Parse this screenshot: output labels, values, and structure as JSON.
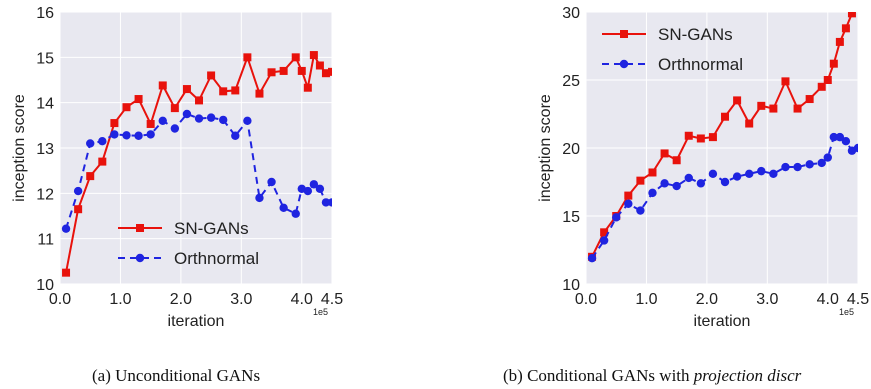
{
  "colors": {
    "sn": "#e8120c",
    "ortho": "#1f24e0",
    "plot_bg": "#e8e8f0",
    "grid": "#ffffff"
  },
  "chart_data": [
    {
      "type": "line",
      "caption": "(a)  Unconditional GANs",
      "xlabel": "iteration",
      "ylabel": "inception score",
      "x_scale_label": "1e5",
      "xlim": [
        0.0,
        4.5
      ],
      "ylim": [
        10,
        16
      ],
      "xticks": [
        "0.0",
        "1.0",
        "2.0",
        "3.0",
        "4.0",
        "4.5"
      ],
      "yticks": [
        "10",
        "11",
        "12",
        "13",
        "14",
        "15",
        "16"
      ],
      "grid": true,
      "legend_position": "lower-center",
      "series": [
        {
          "name": "SN-GANs",
          "style": "solid-square",
          "x": [
            0.1,
            0.3,
            0.5,
            0.7,
            0.9,
            1.1,
            1.3,
            1.5,
            1.7,
            1.9,
            2.1,
            2.3,
            2.5,
            2.7,
            2.9,
            3.1,
            3.3,
            3.5,
            3.7,
            3.9,
            4.0,
            4.1,
            4.2,
            4.3,
            4.4,
            4.5
          ],
          "y": [
            10.25,
            11.65,
            12.38,
            12.7,
            13.55,
            13.9,
            14.08,
            13.53,
            14.38,
            13.88,
            14.3,
            14.05,
            14.6,
            14.25,
            14.27,
            15.0,
            14.2,
            14.67,
            14.7,
            15.0,
            14.7,
            14.33,
            15.05,
            14.82,
            14.65,
            14.68
          ]
        },
        {
          "name": "Orthnormal",
          "style": "dashed-circle",
          "x": [
            0.1,
            0.3,
            0.5,
            0.7,
            0.9,
            1.1,
            1.3,
            1.5,
            1.7,
            1.9,
            2.1,
            2.3,
            2.5,
            2.7,
            2.9,
            3.1,
            3.3,
            3.5,
            3.7,
            3.9,
            4.0,
            4.1,
            4.2,
            4.3,
            4.4,
            4.5
          ],
          "y": [
            11.22,
            12.05,
            13.1,
            13.15,
            13.3,
            13.28,
            13.27,
            13.3,
            13.6,
            13.43,
            13.75,
            13.65,
            13.67,
            13.62,
            13.27,
            13.6,
            11.9,
            12.25,
            11.68,
            11.55,
            12.1,
            12.05,
            12.2,
            12.1,
            11.8,
            11.8
          ]
        }
      ]
    },
    {
      "type": "line",
      "caption_prefix": "(b) Conditional GANs with ",
      "caption_italic": "projection discr",
      "xlabel": "iteration",
      "ylabel": "inception score",
      "x_scale_label": "1e5",
      "xlim": [
        0.0,
        4.5
      ],
      "ylim": [
        10,
        30
      ],
      "xticks": [
        "0.0",
        "1.0",
        "2.0",
        "3.0",
        "4.0",
        "4.5"
      ],
      "yticks": [
        "10",
        "15",
        "20",
        "25",
        "30"
      ],
      "grid": true,
      "legend_position": "top-left",
      "series": [
        {
          "name": "SN-GANs",
          "style": "solid-square",
          "x": [
            0.1,
            0.3,
            0.5,
            0.7,
            0.9,
            1.1,
            1.3,
            1.5,
            1.7,
            1.9,
            2.1,
            2.3,
            2.5,
            2.7,
            2.9,
            3.1,
            3.3,
            3.5,
            3.7,
            3.9,
            4.0,
            4.1,
            4.2,
            4.3,
            4.4,
            4.5
          ],
          "y": [
            12.0,
            13.8,
            15.0,
            16.5,
            17.6,
            18.2,
            19.6,
            19.1,
            20.9,
            20.7,
            20.8,
            22.3,
            23.5,
            21.8,
            23.1,
            22.9,
            24.9,
            22.9,
            23.6,
            24.5,
            25.0,
            26.2,
            27.8,
            28.8,
            29.9,
            30.5
          ]
        },
        {
          "name": "Orthnormal",
          "style": "dashed-circle",
          "x": [
            0.1,
            0.3,
            0.5,
            0.7,
            0.9,
            1.1,
            1.3,
            1.5,
            1.7,
            1.9,
            2.1,
            2.3,
            2.5,
            2.7,
            2.9,
            3.1,
            3.3,
            3.5,
            3.7,
            3.9,
            4.0,
            4.1,
            4.2,
            4.3,
            4.4,
            4.5
          ],
          "y": [
            11.9,
            13.2,
            14.9,
            15.9,
            15.4,
            16.7,
            17.4,
            17.2,
            17.8,
            17.4,
            18.1,
            17.5,
            17.9,
            18.1,
            18.3,
            18.1,
            18.6,
            18.6,
            18.8,
            18.9,
            19.3,
            20.8,
            20.8,
            20.5,
            19.8,
            20.0
          ]
        }
      ]
    }
  ]
}
